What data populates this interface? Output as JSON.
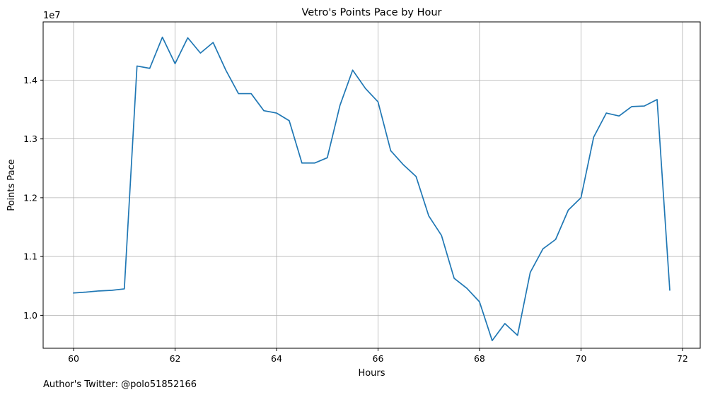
{
  "chart_data": {
    "type": "line",
    "title": "Vetro's Points Pace by Hour",
    "xlabel": "Hours",
    "ylabel": "Points Pace",
    "y_offset_label": "1e7",
    "xlim": [
      59.4,
      72.35
    ],
    "ylim": [
      9440000,
      14990000
    ],
    "grid": true,
    "x_ticks": [
      60,
      62,
      64,
      66,
      68,
      70,
      72
    ],
    "x_tick_labels": [
      "60",
      "62",
      "64",
      "66",
      "68",
      "70",
      "72"
    ],
    "y_ticks": [
      10000000,
      11000000,
      12000000,
      13000000,
      14000000
    ],
    "y_tick_labels": [
      "1.0",
      "1.1",
      "1.2",
      "1.3",
      "1.4"
    ],
    "series": [
      {
        "color": "#1f77b4",
        "x": [
          60.0,
          60.25,
          60.5,
          60.75,
          61.0,
          61.25,
          61.5,
          61.75,
          62.0,
          62.25,
          62.5,
          62.75,
          63.0,
          63.25,
          63.5,
          63.75,
          64.0,
          64.25,
          64.5,
          64.75,
          65.0,
          65.25,
          65.5,
          65.75,
          66.0,
          66.25,
          66.5,
          66.75,
          67.0,
          67.25,
          67.5,
          67.75,
          68.0,
          68.25,
          68.5,
          68.75,
          69.0,
          69.25,
          69.5,
          69.75,
          70.0,
          70.25,
          70.5,
          70.75,
          71.0,
          71.25,
          71.5,
          71.75
        ],
        "y": [
          10380000,
          10395000,
          10415000,
          10425000,
          10450000,
          14240000,
          14200000,
          14730000,
          14280000,
          14720000,
          14460000,
          14640000,
          14170000,
          13770000,
          13770000,
          13480000,
          13440000,
          13310000,
          12590000,
          12590000,
          12680000,
          13570000,
          14170000,
          13860000,
          13630000,
          12800000,
          12560000,
          12360000,
          11690000,
          11360000,
          10630000,
          10460000,
          10230000,
          9570000,
          9860000,
          9660000,
          10730000,
          11130000,
          11290000,
          11790000,
          12000000,
          13030000,
          13440000,
          13390000,
          13550000,
          13560000,
          13670000,
          10430000
        ]
      }
    ]
  },
  "footer": {
    "text": "Author's Twitter: @polo51852166"
  }
}
